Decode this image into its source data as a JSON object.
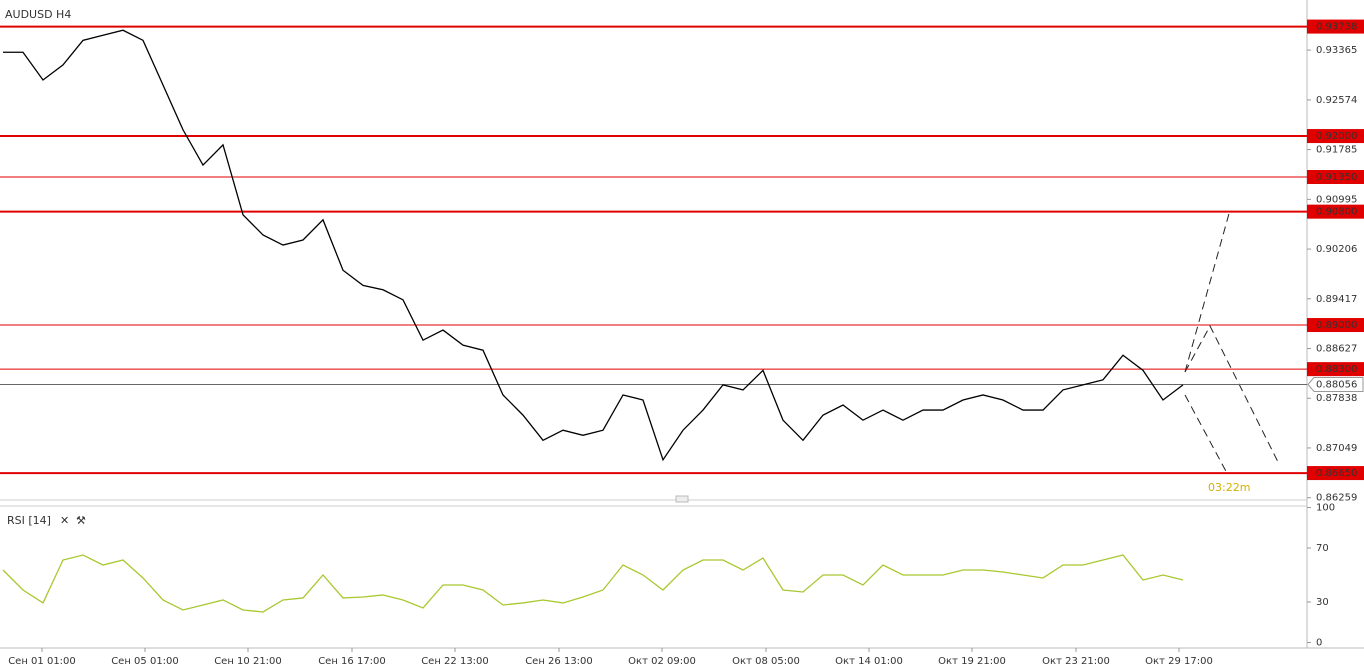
{
  "chart_data": [
    {
      "type": "line",
      "title": "AUDUSD H4",
      "color": "#000000",
      "level_color": "#e00000",
      "xlim": [
        -0.15,
        65.2
      ],
      "ylim": [
        0.8627,
        0.9416
      ],
      "yticks": [
        0.93365,
        0.92574,
        0.91785,
        0.90995,
        0.90206,
        0.89417,
        0.88627,
        0.87838,
        0.87049,
        0.86259
      ],
      "levels": [
        {
          "value": 0.93738,
          "label": "0.93738",
          "style": "thick"
        },
        {
          "value": 0.92,
          "label": "0.92000",
          "style": "thick"
        },
        {
          "value": 0.9135,
          "label": "0.91350",
          "style": "thin"
        },
        {
          "value": 0.908,
          "label": "0.90800",
          "style": "thick"
        },
        {
          "value": 0.89,
          "label": "0.89000",
          "style": "thin"
        },
        {
          "value": 0.883,
          "label": "0.88300",
          "style": "thin"
        },
        {
          "value": 0.8665,
          "label": "0.86650",
          "style": "thick"
        }
      ],
      "last_price": {
        "value": 0.88056,
        "label": "0.88056"
      },
      "countdown": "03:22m",
      "values": [
        0.9333,
        0.9333,
        0.9289,
        0.9313,
        0.9352,
        0.936,
        0.9368,
        0.9352,
        0.9281,
        0.921,
        0.9154,
        0.9186,
        0.9075,
        0.9043,
        0.9027,
        0.9035,
        0.9067,
        0.8987,
        0.8963,
        0.8956,
        0.894,
        0.8876,
        0.8892,
        0.8868,
        0.886,
        0.8789,
        0.8757,
        0.8717,
        0.8733,
        0.8725,
        0.8733,
        0.8789,
        0.8781,
        0.8686,
        0.8733,
        0.8765,
        0.8805,
        0.8797,
        0.8828,
        0.8749,
        0.8717,
        0.8757,
        0.8773,
        0.8749,
        0.8765,
        0.8749,
        0.8765,
        0.8765,
        0.8781,
        0.8789,
        0.8781,
        0.8765,
        0.8765,
        0.8797,
        0.8805,
        0.8813,
        0.8852,
        0.8828,
        0.8781,
        0.8805
      ]
    },
    {
      "type": "line",
      "title": "RSI [14]",
      "color": "#a8c830",
      "xlim": [
        -0.15,
        65.2
      ],
      "ylim": [
        0,
        100
      ],
      "yticks": [
        0,
        30,
        70,
        100
      ],
      "xticks": [
        {
          "value": 1.95,
          "label": "Сен 01 01:00"
        },
        {
          "value": 7.1,
          "label": "Сен 05 01:00"
        },
        {
          "value": 12.25,
          "label": "Сен 10 21:00"
        },
        {
          "value": 17.45,
          "label": "Сен 16 17:00"
        },
        {
          "value": 22.6,
          "label": "Сен 22 13:00"
        },
        {
          "value": 27.8,
          "label": "Сен 26 13:00"
        },
        {
          "value": 32.95,
          "label": "Окт 02 09:00"
        },
        {
          "value": 38.15,
          "label": "Окт 08 05:00"
        },
        {
          "value": 43.3,
          "label": "Окт 14 01:00"
        },
        {
          "value": 48.45,
          "label": "Окт 19 21:00"
        },
        {
          "value": 53.65,
          "label": "Окт 23 21:00"
        },
        {
          "value": 58.8,
          "label": "Окт 29 17:00"
        }
      ],
      "values": [
        53.7,
        38.9,
        29.3,
        61.1,
        64.8,
        57.4,
        61.1,
        47.8,
        31.5,
        24.1,
        27.8,
        31.5,
        24.1,
        22.6,
        31.5,
        33,
        50,
        33,
        33.7,
        35.2,
        31.5,
        25.6,
        42.6,
        42.6,
        38.9,
        27.8,
        29.3,
        31.5,
        29.3,
        33.7,
        38.9,
        57.4,
        50,
        38.9,
        53.7,
        61.1,
        61.1,
        53.7,
        62.6,
        38.9,
        37.4,
        50,
        50,
        42.6,
        57.4,
        50,
        50,
        50,
        53.7,
        53.7,
        52.2,
        50,
        47.8,
        57.4,
        57.4,
        61.1,
        64.8,
        46.3,
        50,
        46.3
      ]
    }
  ]
}
